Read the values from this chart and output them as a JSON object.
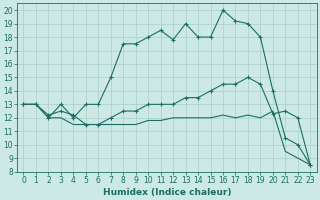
{
  "xlabel": "Humidex (Indice chaleur)",
  "xlim": [
    -0.5,
    23.5
  ],
  "ylim": [
    8,
    20.5
  ],
  "xticks": [
    0,
    1,
    2,
    3,
    4,
    5,
    6,
    7,
    8,
    9,
    10,
    11,
    12,
    13,
    14,
    15,
    16,
    17,
    18,
    19,
    20,
    21,
    22,
    23
  ],
  "yticks": [
    8,
    9,
    10,
    11,
    12,
    13,
    14,
    15,
    16,
    17,
    18,
    19,
    20
  ],
  "bg_color": "#cce9e5",
  "line_color": "#1a6e64",
  "grid_color": "#aacfcc",
  "line1_x": [
    0,
    1,
    2,
    3,
    4,
    5,
    6,
    7,
    8,
    9,
    10,
    11,
    12,
    13,
    14,
    15,
    16,
    17,
    18,
    19,
    20,
    21,
    22,
    23
  ],
  "line1_y": [
    13,
    13,
    12,
    13,
    12,
    13,
    13,
    15,
    17.5,
    17.5,
    18,
    18.5,
    17.8,
    19,
    18,
    18,
    20,
    19.2,
    19,
    18,
    14,
    10.5,
    10,
    8.5
  ],
  "line2_x": [
    0,
    1,
    2,
    3,
    4,
    5,
    6,
    7,
    8,
    9,
    10,
    11,
    12,
    13,
    14,
    15,
    16,
    17,
    18,
    19,
    20,
    21,
    22,
    23
  ],
  "line2_y": [
    13,
    13,
    12.2,
    12.5,
    12.2,
    11.5,
    11.5,
    12,
    12.5,
    12.5,
    13,
    13,
    13,
    13.5,
    13.5,
    14,
    14.5,
    14.5,
    15,
    14.5,
    12.3,
    12.5,
    12,
    8.5
  ],
  "line3_x": [
    0,
    1,
    2,
    3,
    4,
    5,
    6,
    7,
    8,
    9,
    10,
    11,
    12,
    13,
    14,
    15,
    16,
    17,
    18,
    19,
    20,
    21,
    22,
    23
  ],
  "line3_y": [
    13,
    13,
    12,
    12,
    11.5,
    11.5,
    11.5,
    11.5,
    11.5,
    11.5,
    11.8,
    11.8,
    12,
    12,
    12,
    12,
    12.2,
    12,
    12.2,
    12,
    12.5,
    9.5,
    9,
    8.5
  ],
  "tick_fontsize": 5.5,
  "xlabel_fontsize": 6.5
}
